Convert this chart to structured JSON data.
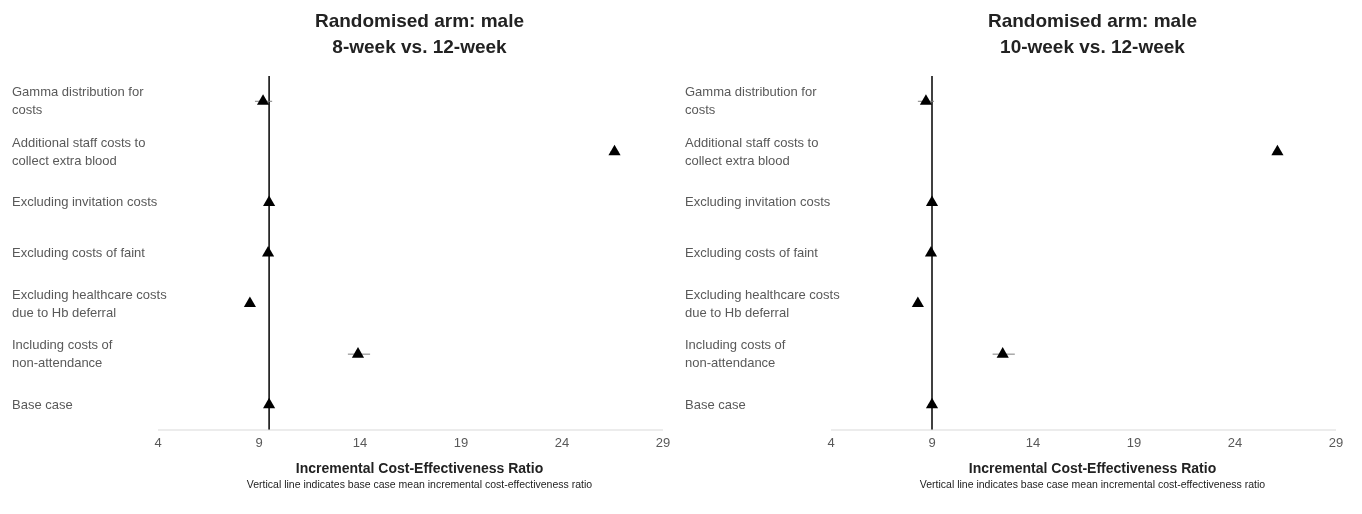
{
  "chart_data": [
    {
      "type": "scatter",
      "title": "Randomised arm: male",
      "subtitle": "8-week vs. 12-week",
      "xlabel": "Incremental Cost-Effectiveness Ratio",
      "annotations": [
        "Vertical line indicates base case mean incremental cost-effectiveness ratio"
      ],
      "categories": [
        "Gamma distribution for costs",
        "Additional staff costs to collect extra blood",
        "Excluding invitation costs",
        "Excluding costs of faint",
        "Excluding healthcare costs due to Hb deferral",
        "Including costs of non-attendance",
        "Base case"
      ],
      "values": [
        9.2,
        26.6,
        9.5,
        9.45,
        8.55,
        13.9,
        9.5
      ],
      "errors": [
        [
          8.8,
          9.65
        ],
        [
          26.4,
          26.8
        ],
        [
          9.35,
          9.65
        ],
        [
          9.35,
          9.55
        ],
        null,
        [
          13.4,
          14.5
        ],
        [
          9.35,
          9.65
        ]
      ],
      "color": "#000000",
      "marker": "triangle",
      "orientation": "horizontal",
      "xlim": [
        4,
        29
      ],
      "xticks": [
        4,
        9,
        14,
        19,
        24,
        29
      ],
      "grid": false,
      "legend": false,
      "ref_lines": [
        {
          "axis": "x",
          "value": 9.5,
          "label": null,
          "color": "#000000"
        }
      ]
    },
    {
      "type": "scatter",
      "title": "Randomised arm: male",
      "subtitle": "10-week vs. 12-week",
      "xlabel": "Incremental Cost-Effectiveness Ratio",
      "annotations": [
        "Vertical line indicates base case mean incremental cost-effectiveness ratio"
      ],
      "categories": [
        "Gamma distribution for costs",
        "Additional staff costs to collect extra blood",
        "Excluding invitation costs",
        "Excluding costs of faint",
        "Excluding healthcare costs due to Hb deferral",
        "Including costs of non-attendance",
        "Base case"
      ],
      "values": [
        8.7,
        26.1,
        9.0,
        8.95,
        8.3,
        12.5,
        9.0
      ],
      "errors": [
        [
          8.3,
          9.1
        ],
        [
          25.9,
          26.25
        ],
        [
          8.8,
          9.2
        ],
        [
          8.8,
          9.1
        ],
        null,
        [
          12.0,
          13.1
        ],
        [
          8.8,
          9.2
        ]
      ],
      "color": "#000000",
      "marker": "triangle",
      "orientation": "horizontal",
      "xlim": [
        4,
        29
      ],
      "xticks": [
        4,
        9,
        14,
        19,
        24,
        29
      ],
      "grid": false,
      "legend": false,
      "ref_lines": [
        {
          "axis": "x",
          "value": 9.0,
          "label": null,
          "color": "#000000"
        }
      ]
    }
  ]
}
